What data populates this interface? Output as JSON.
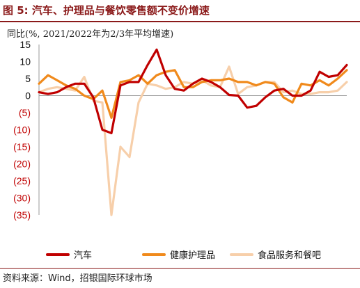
{
  "figure": {
    "title": "图 5: 汽车、护理品与餐饮零售额不变价增速",
    "source": "资料来源：Wind，招银国际环球市场"
  },
  "chart_data": {
    "type": "line",
    "ylabel": "同比(%, 2021/2022年为2/3年平均增速)",
    "ylim": [
      -35,
      15
    ],
    "yticks": [
      15,
      10,
      5,
      0,
      -5,
      -10,
      -15,
      -20,
      -25,
      -30,
      -35
    ],
    "ytick_labels": [
      "15",
      "10",
      "5",
      "0",
      "(5)",
      "(10)",
      "(15)",
      "(20)",
      "(25)",
      "(30)",
      "(35)"
    ],
    "positive_tick_color": "#111111",
    "negative_tick_color": "#c00000",
    "zero_line": true,
    "legend_position": "bottom",
    "series": [
      {
        "name": "汽车",
        "color": "#c00000",
        "values": [
          1,
          0.5,
          1,
          2.5,
          3.5,
          3.5,
          -0.5,
          -10,
          -11,
          3,
          4,
          4,
          9,
          13.5,
          6,
          2,
          1.5,
          3.5,
          5,
          4,
          2.5,
          0.2,
          0,
          -3.5,
          -3,
          -0.5,
          1.5,
          2,
          0,
          0,
          1.5,
          7,
          5.5,
          6,
          9
        ]
      },
      {
        "name": "健康护理品",
        "color": "#f08a1c",
        "values": [
          3.5,
          6,
          4.5,
          3,
          2,
          0,
          -1,
          1.5,
          -6.5,
          4,
          4.5,
          6,
          3.5,
          6,
          7,
          7.5,
          2.5,
          2.5,
          4,
          4.5,
          4.5,
          5,
          4,
          4,
          3,
          4,
          3.5,
          -0.5,
          -2,
          3.5,
          3,
          4.5,
          3,
          5,
          7.5
        ]
      },
      {
        "name": "食品服务和餐吧",
        "color": "#f7cfaa",
        "values": [
          1,
          2,
          2.5,
          2,
          1.5,
          5.5,
          -1.5,
          -2,
          -35,
          -15,
          -18,
          -2,
          3.5,
          3,
          2,
          2.5,
          4,
          3.5,
          4.5,
          3,
          2.5,
          8.5,
          0.5,
          2.5,
          3,
          4,
          4,
          1,
          1.5,
          0.5,
          0.5,
          1,
          1,
          1.5,
          4
        ]
      }
    ]
  }
}
